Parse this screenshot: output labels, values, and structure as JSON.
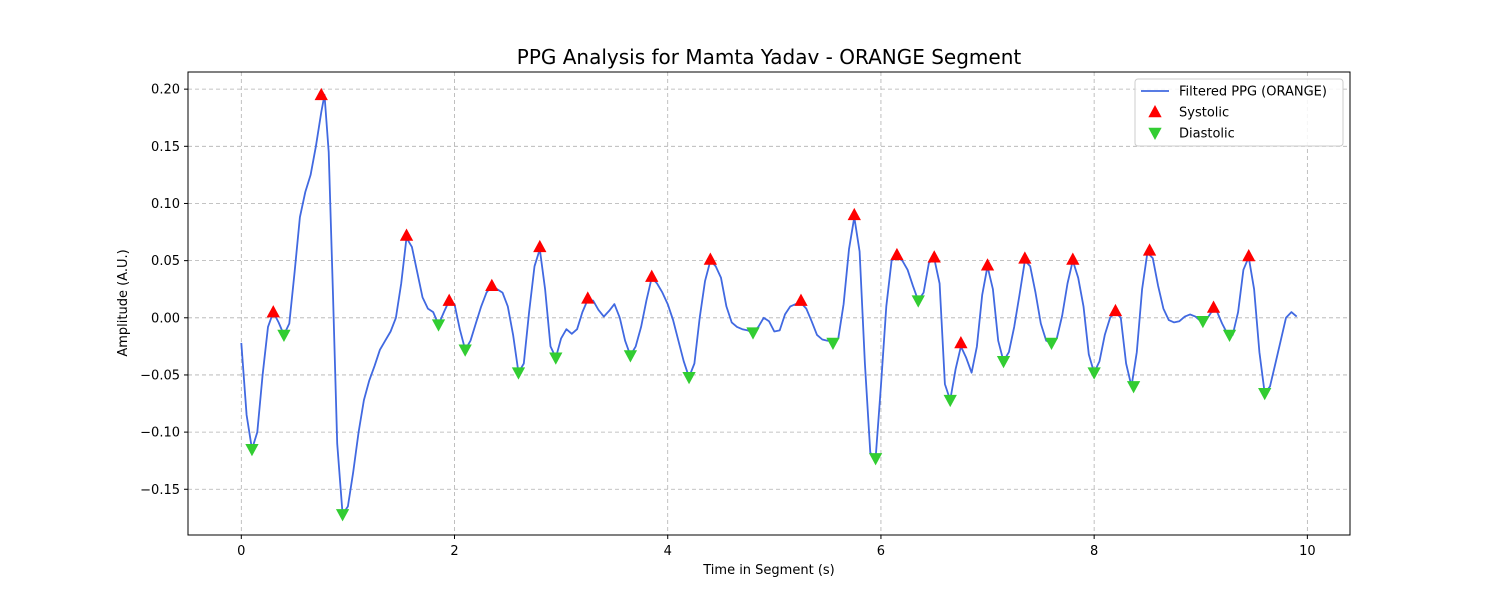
{
  "chart_data": {
    "type": "line",
    "title": "PPG Analysis for Mamta Yadav - ORANGE Segment",
    "xlabel": "Time in Segment (s)",
    "ylabel": "Amplitude (A.U.)",
    "xlim": [
      -0.5,
      10.4
    ],
    "ylim": [
      -0.19,
      0.215
    ],
    "xticks": [
      0,
      2,
      4,
      6,
      8,
      10
    ],
    "yticks": [
      -0.15,
      -0.1,
      -0.05,
      0.0,
      0.05,
      0.1,
      0.15,
      0.2
    ],
    "ytick_labels": [
      "−0.15",
      "−0.10",
      "−0.05",
      "0.00",
      "0.05",
      "0.10",
      "0.15",
      "0.20"
    ],
    "xtick_labels": [
      "0",
      "2",
      "4",
      "6",
      "8",
      "10"
    ],
    "grid": true,
    "legend_position": "top-right",
    "series": [
      {
        "name": "Filtered PPG (ORANGE)",
        "kind": "line",
        "color": "#4169E1",
        "points": [
          [
            0.0,
            -0.022
          ],
          [
            0.05,
            -0.085
          ],
          [
            0.1,
            -0.115
          ],
          [
            0.15,
            -0.1
          ],
          [
            0.2,
            -0.05
          ],
          [
            0.25,
            -0.008
          ],
          [
            0.3,
            0.005
          ],
          [
            0.35,
            -0.004
          ],
          [
            0.4,
            -0.015
          ],
          [
            0.45,
            -0.005
          ],
          [
            0.5,
            0.04
          ],
          [
            0.55,
            0.088
          ],
          [
            0.6,
            0.11
          ],
          [
            0.65,
            0.125
          ],
          [
            0.7,
            0.15
          ],
          [
            0.75,
            0.18
          ],
          [
            0.78,
            0.195
          ],
          [
            0.82,
            0.145
          ],
          [
            0.86,
            0.02
          ],
          [
            0.9,
            -0.11
          ],
          [
            0.95,
            -0.172
          ],
          [
            1.0,
            -0.165
          ],
          [
            1.05,
            -0.135
          ],
          [
            1.1,
            -0.1
          ],
          [
            1.15,
            -0.072
          ],
          [
            1.2,
            -0.055
          ],
          [
            1.25,
            -0.042
          ],
          [
            1.3,
            -0.028
          ],
          [
            1.35,
            -0.02
          ],
          [
            1.4,
            -0.012
          ],
          [
            1.45,
            0.0
          ],
          [
            1.5,
            0.03
          ],
          [
            1.55,
            0.07
          ],
          [
            1.6,
            0.062
          ],
          [
            1.65,
            0.04
          ],
          [
            1.7,
            0.018
          ],
          [
            1.75,
            0.008
          ],
          [
            1.8,
            0.005
          ],
          [
            1.85,
            -0.006
          ],
          [
            1.9,
            0.005
          ],
          [
            1.95,
            0.015
          ],
          [
            2.0,
            0.012
          ],
          [
            2.05,
            -0.01
          ],
          [
            2.1,
            -0.028
          ],
          [
            2.15,
            -0.02
          ],
          [
            2.2,
            -0.005
          ],
          [
            2.25,
            0.01
          ],
          [
            2.3,
            0.022
          ],
          [
            2.35,
            0.028
          ],
          [
            2.4,
            0.025
          ],
          [
            2.45,
            0.022
          ],
          [
            2.5,
            0.01
          ],
          [
            2.55,
            -0.015
          ],
          [
            2.6,
            -0.048
          ],
          [
            2.65,
            -0.04
          ],
          [
            2.7,
            0.005
          ],
          [
            2.75,
            0.045
          ],
          [
            2.8,
            0.06
          ],
          [
            2.85,
            0.025
          ],
          [
            2.9,
            -0.025
          ],
          [
            2.95,
            -0.035
          ],
          [
            3.0,
            -0.018
          ],
          [
            3.05,
            -0.01
          ],
          [
            3.1,
            -0.014
          ],
          [
            3.15,
            -0.01
          ],
          [
            3.2,
            0.005
          ],
          [
            3.25,
            0.016
          ],
          [
            3.3,
            0.015
          ],
          [
            3.35,
            0.007
          ],
          [
            3.4,
            0.001
          ],
          [
            3.45,
            0.006
          ],
          [
            3.5,
            0.012
          ],
          [
            3.55,
            0.0
          ],
          [
            3.6,
            -0.02
          ],
          [
            3.65,
            -0.033
          ],
          [
            3.7,
            -0.025
          ],
          [
            3.75,
            -0.008
          ],
          [
            3.8,
            0.015
          ],
          [
            3.85,
            0.035
          ],
          [
            3.9,
            0.03
          ],
          [
            3.95,
            0.022
          ],
          [
            4.0,
            0.012
          ],
          [
            4.05,
            -0.002
          ],
          [
            4.1,
            -0.02
          ],
          [
            4.15,
            -0.038
          ],
          [
            4.2,
            -0.052
          ],
          [
            4.25,
            -0.04
          ],
          [
            4.3,
            0.0
          ],
          [
            4.35,
            0.032
          ],
          [
            4.4,
            0.05
          ],
          [
            4.45,
            0.045
          ],
          [
            4.5,
            0.035
          ],
          [
            4.55,
            0.01
          ],
          [
            4.6,
            -0.004
          ],
          [
            4.65,
            -0.008
          ],
          [
            4.7,
            -0.01
          ],
          [
            4.75,
            -0.011
          ],
          [
            4.8,
            -0.013
          ],
          [
            4.85,
            -0.008
          ],
          [
            4.9,
            0.0
          ],
          [
            4.95,
            -0.003
          ],
          [
            5.0,
            -0.012
          ],
          [
            5.05,
            -0.011
          ],
          [
            5.1,
            0.003
          ],
          [
            5.15,
            0.01
          ],
          [
            5.2,
            0.012
          ],
          [
            5.25,
            0.013
          ],
          [
            5.3,
            0.008
          ],
          [
            5.35,
            -0.003
          ],
          [
            5.4,
            -0.015
          ],
          [
            5.45,
            -0.019
          ],
          [
            5.5,
            -0.02
          ],
          [
            5.55,
            -0.02
          ],
          [
            5.6,
            -0.018
          ],
          [
            5.65,
            0.012
          ],
          [
            5.7,
            0.06
          ],
          [
            5.75,
            0.088
          ],
          [
            5.8,
            0.058
          ],
          [
            5.85,
            -0.04
          ],
          [
            5.9,
            -0.118
          ],
          [
            5.95,
            -0.123
          ],
          [
            6.0,
            -0.06
          ],
          [
            6.05,
            0.01
          ],
          [
            6.1,
            0.05
          ],
          [
            6.15,
            0.053
          ],
          [
            6.2,
            0.05
          ],
          [
            6.25,
            0.042
          ],
          [
            6.3,
            0.028
          ],
          [
            6.35,
            0.015
          ],
          [
            6.4,
            0.022
          ],
          [
            6.45,
            0.048
          ],
          [
            6.5,
            0.052
          ],
          [
            6.55,
            0.03
          ],
          [
            6.6,
            -0.058
          ],
          [
            6.65,
            -0.072
          ],
          [
            6.7,
            -0.045
          ],
          [
            6.75,
            -0.025
          ],
          [
            6.8,
            -0.035
          ],
          [
            6.85,
            -0.048
          ],
          [
            6.9,
            -0.025
          ],
          [
            6.95,
            0.02
          ],
          [
            7.0,
            0.045
          ],
          [
            7.05,
            0.025
          ],
          [
            7.1,
            -0.02
          ],
          [
            7.15,
            -0.038
          ],
          [
            7.2,
            -0.03
          ],
          [
            7.25,
            -0.008
          ],
          [
            7.3,
            0.02
          ],
          [
            7.35,
            0.05
          ],
          [
            7.4,
            0.045
          ],
          [
            7.45,
            0.022
          ],
          [
            7.5,
            -0.005
          ],
          [
            7.55,
            -0.02
          ],
          [
            7.6,
            -0.022
          ],
          [
            7.65,
            -0.018
          ],
          [
            7.7,
            0.002
          ],
          [
            7.75,
            0.03
          ],
          [
            7.8,
            0.05
          ],
          [
            7.85,
            0.035
          ],
          [
            7.9,
            0.01
          ],
          [
            7.95,
            -0.032
          ],
          [
            8.0,
            -0.048
          ],
          [
            8.05,
            -0.038
          ],
          [
            8.1,
            -0.015
          ],
          [
            8.15,
            0.0
          ],
          [
            8.2,
            0.005
          ],
          [
            8.25,
            0.0
          ],
          [
            8.3,
            -0.04
          ],
          [
            8.35,
            -0.06
          ],
          [
            8.4,
            -0.03
          ],
          [
            8.45,
            0.025
          ],
          [
            8.5,
            0.057
          ],
          [
            8.55,
            0.052
          ],
          [
            8.6,
            0.028
          ],
          [
            8.65,
            0.008
          ],
          [
            8.7,
            -0.002
          ],
          [
            8.75,
            -0.004
          ],
          [
            8.8,
            -0.003
          ],
          [
            8.85,
            0.001
          ],
          [
            8.9,
            0.003
          ],
          [
            8.95,
            0.001
          ],
          [
            9.0,
            -0.003
          ],
          [
            9.05,
            -0.002
          ],
          [
            9.1,
            0.005
          ],
          [
            9.15,
            0.006
          ],
          [
            9.2,
            -0.005
          ],
          [
            9.25,
            -0.014
          ],
          [
            9.3,
            -0.015
          ],
          [
            9.35,
            0.005
          ],
          [
            9.4,
            0.042
          ],
          [
            9.45,
            0.053
          ],
          [
            9.5,
            0.025
          ],
          [
            9.55,
            -0.03
          ],
          [
            9.6,
            -0.066
          ],
          [
            9.65,
            -0.06
          ],
          [
            9.7,
            -0.04
          ],
          [
            9.75,
            -0.02
          ],
          [
            9.8,
            0.0
          ],
          [
            9.85,
            0.005
          ],
          [
            9.9,
            0.001
          ]
        ]
      },
      {
        "name": "Systolic",
        "kind": "marker-up",
        "color": "#FF0000",
        "points": [
          [
            0.3,
            0.005
          ],
          [
            0.75,
            0.195
          ],
          [
            1.55,
            0.072
          ],
          [
            1.95,
            0.015
          ],
          [
            2.35,
            0.028
          ],
          [
            2.8,
            0.062
          ],
          [
            3.25,
            0.017
          ],
          [
            3.85,
            0.036
          ],
          [
            4.4,
            0.051
          ],
          [
            5.25,
            0.015
          ],
          [
            5.75,
            0.09
          ],
          [
            6.15,
            0.055
          ],
          [
            6.5,
            0.053
          ],
          [
            6.75,
            -0.022
          ],
          [
            7.0,
            0.046
          ],
          [
            7.35,
            0.052
          ],
          [
            7.8,
            0.051
          ],
          [
            8.2,
            0.006
          ],
          [
            8.52,
            0.059
          ],
          [
            9.12,
            0.009
          ],
          [
            9.45,
            0.054
          ]
        ]
      },
      {
        "name": "Diastolic",
        "kind": "marker-down",
        "color": "#32CD32",
        "points": [
          [
            0.1,
            -0.115
          ],
          [
            0.4,
            -0.015
          ],
          [
            0.95,
            -0.172
          ],
          [
            1.85,
            -0.006
          ],
          [
            2.1,
            -0.028
          ],
          [
            2.6,
            -0.048
          ],
          [
            2.95,
            -0.035
          ],
          [
            3.65,
            -0.033
          ],
          [
            4.2,
            -0.052
          ],
          [
            4.8,
            -0.013
          ],
          [
            5.55,
            -0.022
          ],
          [
            5.95,
            -0.123
          ],
          [
            6.35,
            0.015
          ],
          [
            6.65,
            -0.072
          ],
          [
            7.15,
            -0.038
          ],
          [
            7.6,
            -0.022
          ],
          [
            8.0,
            -0.048
          ],
          [
            8.37,
            -0.06
          ],
          [
            9.02,
            -0.003
          ],
          [
            9.27,
            -0.015
          ],
          [
            9.6,
            -0.066
          ]
        ]
      }
    ]
  }
}
